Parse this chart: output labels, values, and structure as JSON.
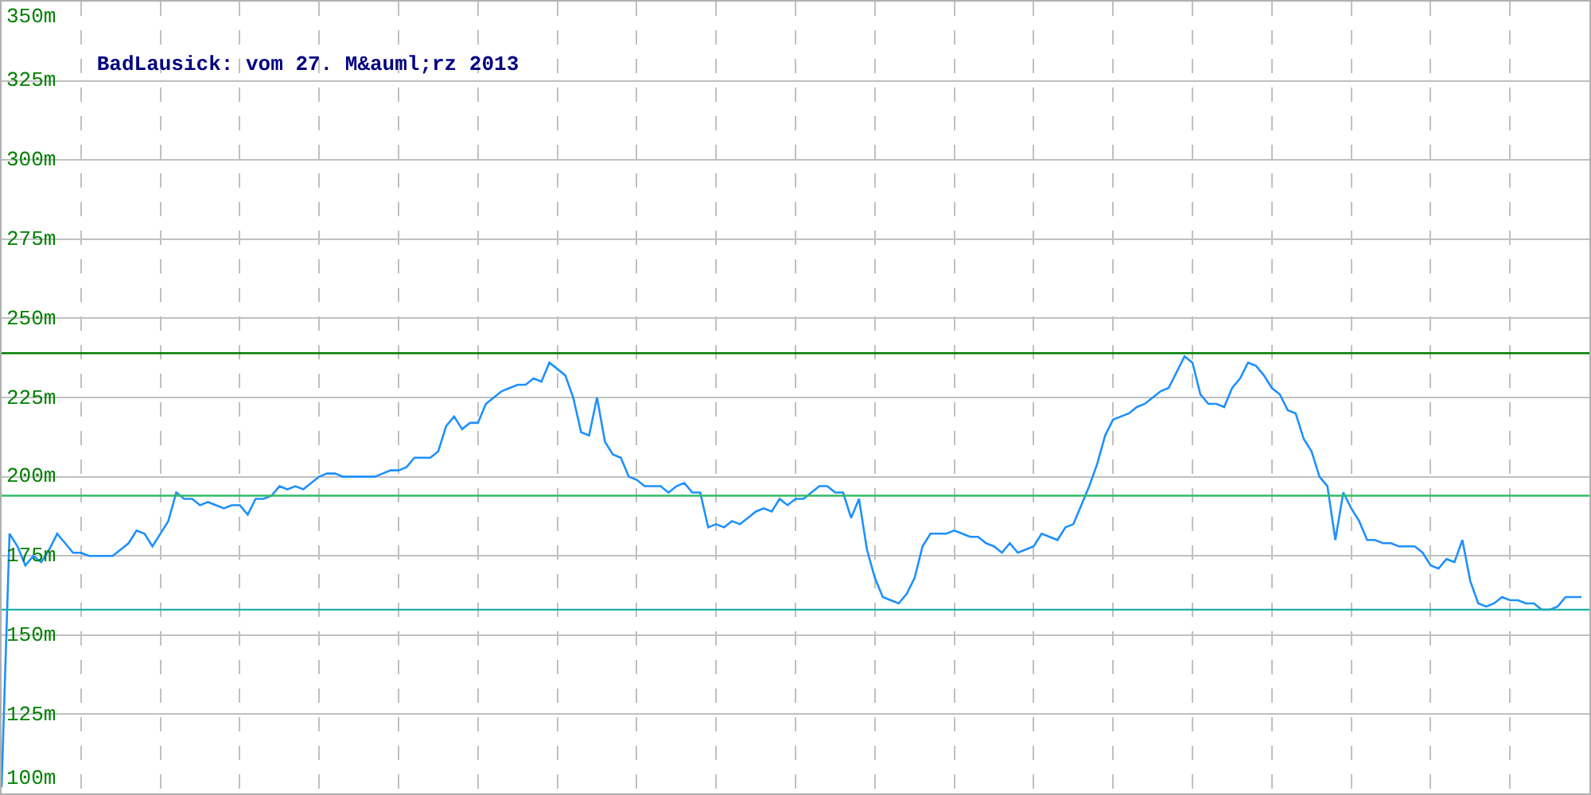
{
  "chart_data": {
    "type": "line",
    "title": "BadLausick: vom 27. M&auml;rz 2013",
    "categories": [
      null,
      null,
      null,
      null,
      null,
      null,
      null,
      null,
      null,
      null,
      null,
      null,
      null,
      null,
      null,
      null,
      null,
      null,
      null,
      null,
      null,
      null,
      null,
      null,
      null,
      null,
      null,
      null,
      null,
      null,
      null,
      null,
      null,
      null,
      null,
      null,
      null,
      null,
      null,
      null,
      null,
      null,
      null,
      null,
      null,
      null,
      null,
      null,
      null,
      null,
      null,
      null,
      null,
      null,
      null,
      null,
      null,
      null,
      null,
      null,
      null,
      null,
      null,
      null,
      null,
      null,
      null,
      null,
      null,
      null,
      null,
      null,
      null,
      null,
      null,
      null,
      null,
      null,
      null,
      null,
      null,
      null,
      null,
      null,
      null,
      null,
      null,
      null,
      null,
      null,
      null,
      null,
      null,
      null,
      null,
      null,
      null,
      null,
      null,
      null,
      null,
      null,
      null,
      null,
      null,
      null,
      null,
      null,
      null,
      null,
      null,
      null,
      null,
      null,
      null,
      null,
      null,
      null,
      null,
      null,
      null,
      null,
      null,
      null,
      null,
      null,
      null,
      null,
      null,
      null,
      null,
      null,
      null,
      null,
      null,
      null,
      null,
      null,
      null,
      null,
      null,
      null,
      null,
      null,
      null,
      null,
      null,
      null,
      null,
      null,
      null,
      null,
      null,
      null,
      null,
      null,
      null,
      null,
      null,
      null,
      null,
      null,
      null,
      null,
      null,
      null,
      null,
      null,
      null,
      null,
      null,
      null,
      null,
      null,
      null,
      null,
      null,
      null,
      null,
      null,
      null,
      null,
      null,
      null,
      null,
      null,
      null,
      null,
      null,
      null,
      null,
      null,
      null,
      null,
      null,
      null,
      null,
      null,
      null,
      null
    ],
    "series": [
      {
        "color": "#1e90ff",
        "values": [
          102,
          182,
          178,
          172,
          175,
          173,
          177,
          182,
          179,
          176,
          176,
          175,
          175,
          175,
          175,
          177,
          179,
          183,
          182,
          178,
          182,
          186,
          195,
          193,
          193,
          191,
          192,
          191,
          190,
          191,
          191,
          188,
          193,
          193,
          194,
          197,
          196,
          197,
          196,
          198,
          200,
          201,
          201,
          200,
          200,
          200,
          200,
          200,
          201,
          202,
          202,
          203,
          206,
          206,
          206,
          208,
          216,
          219,
          215,
          217,
          217,
          223,
          225,
          227,
          228,
          229,
          229,
          231,
          230,
          236,
          234,
          232,
          225,
          214,
          213,
          225,
          211,
          207,
          206,
          200,
          199,
          197,
          197,
          197,
          195,
          197,
          198,
          195,
          195,
          184,
          185,
          184,
          186,
          185,
          187,
          189,
          190,
          189,
          193,
          191,
          193,
          193,
          195,
          197,
          197,
          195,
          195,
          187,
          193,
          177,
          168,
          162,
          161,
          160,
          163,
          168,
          178,
          182,
          182,
          182,
          183,
          182,
          181,
          181,
          179,
          178,
          176,
          179,
          176,
          177,
          178,
          182,
          181,
          180,
          184,
          185,
          191,
          197,
          204,
          213,
          218,
          219,
          220,
          222,
          223,
          225,
          227,
          228,
          233,
          238,
          236,
          226,
          223,
          223,
          222,
          228,
          231,
          236,
          235,
          232,
          228,
          226,
          221,
          220,
          212,
          208,
          200,
          197,
          180,
          195,
          190,
          186,
          180,
          180,
          179,
          179,
          178,
          178,
          178,
          176,
          172,
          171,
          174,
          173,
          180,
          167,
          160,
          159,
          160,
          162,
          161,
          161,
          160,
          160,
          158,
          158,
          159,
          162,
          162,
          162
        ]
      }
    ],
    "ylim": [
      100,
      350
    ],
    "yticks": [
      {
        "value": 100,
        "label": "100m"
      },
      {
        "value": 125,
        "label": "125m"
      },
      {
        "value": 150,
        "label": "150m"
      },
      {
        "value": 175,
        "label": "175m"
      },
      {
        "value": 200,
        "label": "200m"
      },
      {
        "value": 225,
        "label": "225m"
      },
      {
        "value": 250,
        "label": "250m"
      },
      {
        "value": 275,
        "label": "275m"
      },
      {
        "value": 300,
        "label": "300m"
      },
      {
        "value": 325,
        "label": "325m"
      },
      {
        "value": 350,
        "label": "350m"
      }
    ],
    "ref_lines": [
      {
        "axis": "y",
        "value": 239,
        "color": "#008000"
      },
      {
        "axis": "y",
        "value": 194,
        "color": "#33bb66"
      },
      {
        "axis": "y",
        "value": 158,
        "color": "#20b2aa"
      }
    ],
    "grid": true,
    "tick_labels": "y",
    "marker": "none",
    "line_style": "solid"
  }
}
